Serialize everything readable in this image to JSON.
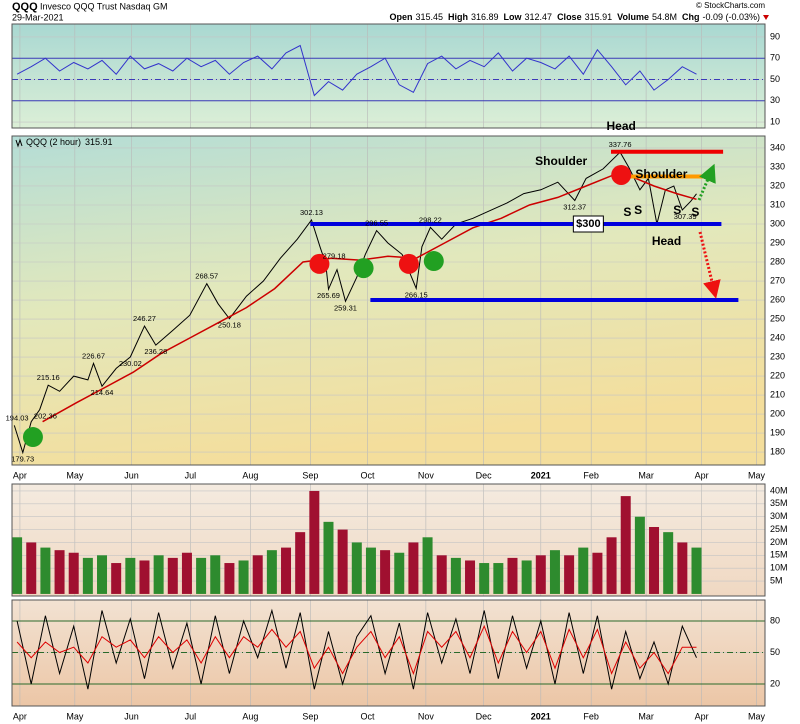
{
  "header": {
    "symbol": "QQQ",
    "name": "Invesco QQQ Trust Nasdaq GM",
    "date": "29-Mar-2021",
    "quote": [
      {
        "label": "Open",
        "value": "315.45"
      },
      {
        "label": "High",
        "value": "316.89"
      },
      {
        "label": "Low",
        "value": "312.47"
      },
      {
        "label": "Close",
        "value": "315.91"
      },
      {
        "label": "Volume",
        "value": "54.8M"
      },
      {
        "label": "Chg",
        "value": "-0.09 (-0.03%)"
      }
    ],
    "credit": "© StockCharts.com"
  },
  "chart_data": [
    {
      "type": "line",
      "xlim": [
        -0.14,
        13.16
      ],
      "ylim": [
        4.4,
        102.2
      ],
      "yticks": [
        90,
        70,
        50,
        30,
        10
      ],
      "ref_lines": [
        70,
        50,
        30
      ],
      "ref_color": "#3a3ab8",
      "series": [
        {
          "color": "#3333cc",
          "x": [
            -0.05,
            0.2,
            0.45,
            0.7,
            0.95,
            1.2,
            1.45,
            1.7,
            1.95,
            2.2,
            2.45,
            2.7,
            2.95,
            3.2,
            3.45,
            3.7,
            3.95,
            4.2,
            4.45,
            4.7,
            4.95,
            5.2,
            5.45,
            5.7,
            5.95,
            6.2,
            6.45,
            6.7,
            6.95,
            7.2,
            7.45,
            7.7,
            7.95,
            8.2,
            8.45,
            8.7,
            8.95,
            9.2,
            9.45,
            9.7,
            9.95,
            10.2,
            10.45,
            10.7,
            10.95,
            11.2,
            11.45,
            11.7,
            11.95
          ],
          "values": [
            55,
            62,
            70,
            58,
            66,
            60,
            68,
            55,
            72,
            60,
            65,
            58,
            70,
            62,
            68,
            55,
            66,
            72,
            60,
            75,
            82,
            35,
            48,
            40,
            55,
            62,
            70,
            45,
            38,
            65,
            72,
            60,
            68,
            62,
            75,
            58,
            70,
            66,
            60,
            72,
            55,
            78,
            62,
            45,
            58,
            40,
            50,
            62,
            55
          ]
        }
      ]
    },
    {
      "type": "line",
      "legend": "QQQ (2 hour)",
      "last_value": 315.91,
      "xlim": [
        -0.14,
        13.16
      ],
      "ylim": [
        173.2,
        346.3
      ],
      "yticks": [
        340,
        330,
        320,
        310,
        300,
        290,
        280,
        270,
        260,
        250,
        240,
        230,
        220,
        210,
        200,
        190,
        180
      ],
      "xticks": [
        {
          "value": 0,
          "label": "Apr"
        },
        {
          "value": 0.97,
          "label": "May"
        },
        {
          "value": 1.97,
          "label": "Jun"
        },
        {
          "value": 3.01,
          "label": "Jul"
        },
        {
          "value": 4.07,
          "label": "Aug"
        },
        {
          "value": 5.13,
          "label": "Sep"
        },
        {
          "value": 6.14,
          "label": "Oct"
        },
        {
          "value": 7.17,
          "label": "Nov"
        },
        {
          "value": 8.19,
          "label": "Dec"
        },
        {
          "value": 9.2,
          "label": "2021"
        },
        {
          "value": 10.09,
          "label": "Feb"
        },
        {
          "value": 11.06,
          "label": "Mar"
        },
        {
          "value": 12.04,
          "label": "Apr"
        },
        {
          "value": 13.01,
          "label": "May"
        }
      ],
      "series": [
        {
          "color": "#000000",
          "x": [
            -0.1,
            0.05,
            0.2,
            0.35,
            0.5,
            0.7,
            0.95,
            1.2,
            1.3,
            1.45,
            1.7,
            1.95,
            2.2,
            2.4,
            2.7,
            3.0,
            3.3,
            3.5,
            3.7,
            4.0,
            4.3,
            4.6,
            4.9,
            5.15,
            5.3,
            5.4,
            5.45,
            5.6,
            5.75,
            5.95,
            6.1,
            6.3,
            6.5,
            6.75,
            7.0,
            7.1,
            7.25,
            7.45,
            7.7,
            8.0,
            8.3,
            8.6,
            8.9,
            9.2,
            9.5,
            9.8,
            10.0,
            10.3,
            10.6,
            10.75,
            10.95,
            11.1,
            11.25,
            11.4,
            11.55,
            11.7,
            11.85,
            11.95
          ],
          "values": [
            194.03,
            179.73,
            196,
            202.36,
            215.16,
            212,
            220,
            218,
            226.67,
            214.64,
            224,
            230.02,
            246.27,
            236.28,
            244,
            252,
            268.57,
            258,
            250.18,
            262,
            270,
            282,
            292,
            302.13,
            288,
            279.18,
            265.69,
            276,
            259.31,
            272,
            284,
            296.55,
            290,
            284,
            266.15,
            288,
            298.22,
            292,
            300,
            303,
            307,
            311,
            316,
            318,
            322,
            312.37,
            324,
            329,
            337.76,
            330,
            318,
            324,
            300,
            318,
            320,
            307.39,
            312,
            315.91
          ]
        },
        {
          "color": "#cc0000",
          "x": [
            0.4,
            1,
            1.5,
            2,
            2.5,
            3,
            3.5,
            4,
            4.5,
            5,
            5.5,
            6,
            6.5,
            7,
            7.5,
            8,
            8.5,
            9,
            9.5,
            10,
            10.5,
            10.8,
            11.2,
            11.6,
            11.95
          ],
          "values": [
            196,
            206,
            214,
            222,
            232,
            240,
            248,
            256,
            266,
            280,
            282,
            281,
            283,
            282,
            290,
            298,
            303,
            310,
            314,
            320,
            326,
            325,
            320,
            316,
            313
          ]
        }
      ],
      "data_labels": [
        {
          "x": -0.05,
          "value": 194.03,
          "pos": "above"
        },
        {
          "x": 0.05,
          "value": 179.73,
          "pos": "below"
        },
        {
          "x": 0.45,
          "value": 202.36,
          "pos": "below"
        },
        {
          "x": 0.5,
          "value": 215.16,
          "pos": "above"
        },
        {
          "x": 1.45,
          "value": 214.64,
          "pos": "below"
        },
        {
          "x": 1.3,
          "value": 226.67,
          "pos": "above"
        },
        {
          "x": 2.2,
          "value": 246.27,
          "pos": "above"
        },
        {
          "x": 1.95,
          "value": 230.02,
          "pos": "below"
        },
        {
          "x": 2.4,
          "value": 236.28,
          "pos": "below"
        },
        {
          "x": 3.3,
          "value": 268.57,
          "pos": "above"
        },
        {
          "x": 3.7,
          "value": 250.18,
          "pos": "below"
        },
        {
          "x": 5.15,
          "value": 302.13,
          "pos": "above"
        },
        {
          "x": 5.55,
          "value": 279.18,
          "pos": "above"
        },
        {
          "x": 5.45,
          "value": 265.69,
          "pos": "below"
        },
        {
          "x": 5.75,
          "value": 259.31,
          "pos": "below"
        },
        {
          "x": 6.3,
          "value": 296.55,
          "pos": "above"
        },
        {
          "x": 7.0,
          "value": 266.15,
          "pos": "below"
        },
        {
          "x": 7.25,
          "value": 298.22,
          "pos": "above"
        },
        {
          "x": 9.8,
          "value": 312.37,
          "pos": "below"
        },
        {
          "x": 10.6,
          "value": 337.76,
          "pos": "above"
        },
        {
          "x": 11.75,
          "value": 307.39,
          "pos": "below"
        }
      ],
      "level_lines": [
        {
          "value": 300,
          "x": [
            5.13,
            12.39
          ],
          "color": "#0000dd"
        },
        {
          "value": 260,
          "x": [
            6.19,
            12.69
          ],
          "color": "#0000dd"
        },
        {
          "value": 338,
          "x": [
            10.44,
            12.42
          ],
          "color": "#ee0000"
        },
        {
          "value": 325,
          "x": [
            10.62,
            12.09
          ],
          "color": "#ff9900"
        }
      ],
      "markers": [
        {
          "x": 0.23,
          "y": 187.9,
          "color": "#22a022"
        },
        {
          "x": 5.29,
          "y": 279,
          "color": "#ee1111"
        },
        {
          "x": 6.07,
          "y": 276.8,
          "color": "#22a022"
        },
        {
          "x": 6.87,
          "y": 279,
          "color": "#ee1111"
        },
        {
          "x": 7.31,
          "y": 280.5,
          "color": "#22a022"
        },
        {
          "x": 10.62,
          "y": 325.8,
          "color": "#ee1111"
        }
      ],
      "notes": [
        {
          "text": "Head",
          "x": 10.62,
          "y": 351,
          "color": "#000000"
        },
        {
          "text": "Shoulder",
          "x": 9.56,
          "y": 332.6,
          "color": "#000000"
        },
        {
          "text": "Shoulder",
          "x": 11.33,
          "y": 325.8,
          "color": "#000000"
        },
        {
          "text": "Head",
          "x": 11.42,
          "y": 290.5,
          "color": "#1a3fcc"
        },
        {
          "text": "S",
          "x": 10.73,
          "y": 306,
          "color": "#1a3fcc"
        },
        {
          "text": "S",
          "x": 10.92,
          "y": 307,
          "color": "#1a3fcc"
        },
        {
          "text": "S",
          "x": 11.61,
          "y": 307,
          "color": "#1a3fcc"
        },
        {
          "text": "S",
          "x": 11.93,
          "y": 306,
          "color": "#1a3fcc"
        },
        {
          "text": "$300",
          "x": 10.04,
          "y": 300,
          "color": "#000000",
          "box": true
        }
      ]
    },
    {
      "type": "bar",
      "xlim": [
        -0.14,
        13.16
      ],
      "ylim": [
        -0.8,
        42.7
      ],
      "yticks": [
        {
          "value": 40,
          "label": "40M"
        },
        {
          "value": 35,
          "label": "35M"
        },
        {
          "value": 30,
          "label": "30M"
        },
        {
          "value": 25,
          "label": "25M"
        },
        {
          "value": 20,
          "label": "20M"
        },
        {
          "value": 15,
          "label": "15M"
        },
        {
          "value": 10,
          "label": "10M"
        },
        {
          "value": 5,
          "label": "5M"
        }
      ],
      "x": [
        -0.05,
        0.2,
        0.45,
        0.7,
        0.95,
        1.2,
        1.45,
        1.7,
        1.95,
        2.2,
        2.45,
        2.7,
        2.95,
        3.2,
        3.45,
        3.7,
        3.95,
        4.2,
        4.45,
        4.7,
        4.95,
        5.2,
        5.45,
        5.7,
        5.95,
        6.2,
        6.45,
        6.7,
        6.95,
        7.2,
        7.45,
        7.7,
        7.95,
        8.2,
        8.45,
        8.7,
        8.95,
        9.2,
        9.45,
        9.7,
        9.95,
        10.2,
        10.45,
        10.7,
        10.95,
        11.2,
        11.45,
        11.7,
        11.95
      ],
      "values": [
        22,
        20,
        18,
        17,
        16,
        14,
        15,
        12,
        14,
        13,
        15,
        14,
        16,
        14,
        15,
        12,
        13,
        15,
        17,
        18,
        24,
        40,
        28,
        25,
        20,
        18,
        17,
        16,
        20,
        22,
        15,
        14,
        13,
        12,
        12,
        14,
        13,
        15,
        17,
        15,
        18,
        16,
        22,
        38,
        30,
        26,
        24,
        20,
        18
      ],
      "bar_colors": [
        "#2e8b2e",
        "#a01030",
        "#2e8b2e",
        "#a01030",
        "#a01030",
        "#2e8b2e",
        "#2e8b2e",
        "#a01030",
        "#2e8b2e",
        "#a01030",
        "#2e8b2e",
        "#a01030",
        "#a01030",
        "#2e8b2e",
        "#2e8b2e",
        "#a01030",
        "#2e8b2e",
        "#a01030",
        "#2e8b2e",
        "#a01030",
        "#a01030",
        "#a01030",
        "#2e8b2e",
        "#a01030",
        "#2e8b2e",
        "#2e8b2e",
        "#a01030",
        "#2e8b2e",
        "#a01030",
        "#2e8b2e",
        "#a01030",
        "#2e8b2e",
        "#a01030",
        "#2e8b2e",
        "#2e8b2e",
        "#a01030",
        "#2e8b2e",
        "#a01030",
        "#2e8b2e",
        "#a01030",
        "#2e8b2e",
        "#a01030",
        "#a01030",
        "#a01030",
        "#2e8b2e",
        "#a01030",
        "#2e8b2e",
        "#a01030",
        "#2e8b2e"
      ]
    },
    {
      "type": "line",
      "xlim": [
        -0.14,
        13.16
      ],
      "ylim": [
        -1,
        100
      ],
      "yticks": [
        80,
        50,
        20
      ],
      "ref_lines": [
        80,
        50,
        20
      ],
      "ref_color": "#2a6a2a",
      "xticks": [
        {
          "value": 0,
          "label": "Apr"
        },
        {
          "value": 0.97,
          "label": "May"
        },
        {
          "value": 1.97,
          "label": "Jun"
        },
        {
          "value": 3.01,
          "label": "Jul"
        },
        {
          "value": 4.07,
          "label": "Aug"
        },
        {
          "value": 5.13,
          "label": "Sep"
        },
        {
          "value": 6.14,
          "label": "Oct"
        },
        {
          "value": 7.17,
          "label": "Nov"
        },
        {
          "value": 8.19,
          "label": "Dec"
        },
        {
          "value": 9.2,
          "label": "2021"
        },
        {
          "value": 10.09,
          "label": "Feb"
        },
        {
          "value": 11.06,
          "label": "Mar"
        },
        {
          "value": 12.04,
          "label": "Apr"
        },
        {
          "value": 13.01,
          "label": "May"
        }
      ],
      "series": [
        {
          "color": "#000000",
          "x": [
            -0.05,
            0.2,
            0.45,
            0.7,
            0.95,
            1.2,
            1.45,
            1.7,
            1.95,
            2.2,
            2.45,
            2.7,
            2.95,
            3.2,
            3.45,
            3.7,
            3.95,
            4.2,
            4.45,
            4.7,
            4.95,
            5.2,
            5.45,
            5.7,
            5.95,
            6.2,
            6.45,
            6.7,
            6.95,
            7.2,
            7.45,
            7.7,
            7.95,
            8.2,
            8.45,
            8.7,
            8.95,
            9.2,
            9.45,
            9.7,
            9.95,
            10.2,
            10.45,
            10.7,
            10.95,
            11.2,
            11.45,
            11.7,
            11.95
          ],
          "values": [
            80,
            20,
            85,
            30,
            75,
            15,
            90,
            40,
            82,
            25,
            88,
            35,
            78,
            20,
            85,
            30,
            80,
            45,
            90,
            35,
            88,
            15,
            70,
            20,
            65,
            85,
            30,
            78,
            15,
            88,
            40,
            82,
            30,
            90,
            25,
            85,
            35,
            80,
            20,
            88,
            30,
            85,
            15,
            70,
            25,
            60,
            20,
            75,
            45
          ]
        },
        {
          "color": "#dd0000",
          "x": [
            -0.05,
            0.2,
            0.45,
            0.7,
            0.95,
            1.2,
            1.45,
            1.7,
            1.95,
            2.2,
            2.45,
            2.7,
            2.95,
            3.2,
            3.45,
            3.7,
            3.95,
            4.2,
            4.45,
            4.7,
            4.95,
            5.2,
            5.45,
            5.7,
            5.95,
            6.2,
            6.45,
            6.7,
            6.95,
            7.2,
            7.45,
            7.7,
            7.95,
            8.2,
            8.45,
            8.7,
            8.95,
            9.2,
            9.45,
            9.7,
            9.95,
            10.2,
            10.45,
            10.7,
            10.95,
            11.2,
            11.45,
            11.7,
            11.95
          ],
          "values": [
            60,
            45,
            60,
            50,
            55,
            40,
            65,
            55,
            62,
            45,
            65,
            50,
            62,
            40,
            65,
            45,
            65,
            55,
            72,
            55,
            70,
            35,
            55,
            30,
            55,
            70,
            45,
            65,
            30,
            70,
            55,
            70,
            45,
            75,
            40,
            70,
            50,
            70,
            35,
            72,
            45,
            72,
            30,
            60,
            35,
            50,
            30,
            55,
            55
          ]
        }
      ]
    }
  ]
}
